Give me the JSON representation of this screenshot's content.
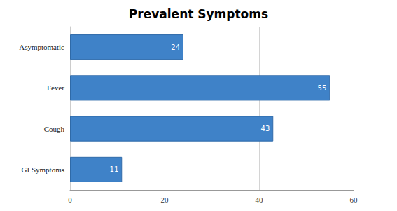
{
  "chart_data": {
    "type": "bar",
    "title": "Prevalent Symptoms",
    "orientation": "horizontal",
    "categories": [
      "Asymptomatic",
      "Fever",
      "Cough",
      "GI Symptoms"
    ],
    "values": [
      24,
      55,
      43,
      11
    ],
    "color": "#3f82c8",
    "xlim": [
      0,
      60
    ],
    "xticks": [
      0,
      20,
      40,
      60
    ],
    "grid": true,
    "data_labels": true
  }
}
